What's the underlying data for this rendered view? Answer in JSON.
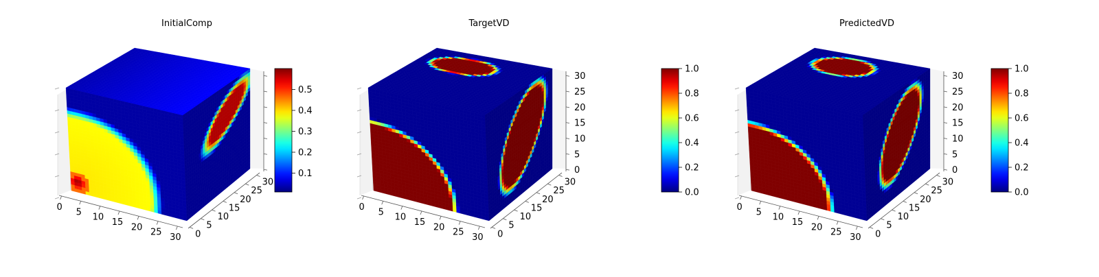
{
  "chart_data": [
    {
      "type": "3d-voxel",
      "title": "InitialComp",
      "axes": {
        "x": [
          0,
          32
        ],
        "y": [
          0,
          32
        ],
        "z": [
          0,
          32
        ]
      },
      "x_ticks": [
        "0",
        "5",
        "10",
        "15",
        "20",
        "25",
        "30"
      ],
      "y_ticks": [
        "0",
        "5",
        "10",
        "15",
        "20",
        "25",
        "30"
      ],
      "z_ticks": [],
      "colormap": "jet",
      "colorbar": {
        "min": 0.03,
        "max": 0.59,
        "ticks": [
          "0.1",
          "0.2",
          "0.3",
          "0.4",
          "0.5"
        ]
      },
      "front_face": "background ~0.05; large circular region ~0.38 centered near (x≈3, z≈3) radius ~18; peak ~0.59 at (x≈2, z≈3)",
      "side_face": "background ~0.05; elongated high band ~0.5 near upper right",
      "top_face": "uniform low ~0.05"
    },
    {
      "type": "3d-voxel",
      "title": "TargetVD",
      "axes": {
        "x": [
          0,
          32
        ],
        "y": [
          0,
          32
        ],
        "z": [
          0,
          32
        ]
      },
      "x_ticks": [
        "0",
        "5",
        "10",
        "15",
        "20",
        "25",
        "30"
      ],
      "y_ticks": [
        "0",
        "5",
        "10",
        "15",
        "20",
        "25",
        "30"
      ],
      "z_ticks": [
        "0",
        "5",
        "10",
        "15",
        "20",
        "25",
        "30"
      ],
      "colormap": "jet",
      "colorbar": {
        "min": 0.0,
        "max": 1.0,
        "ticks": [
          "0.0",
          "0.2",
          "0.4",
          "0.6",
          "0.8",
          "1.0"
        ]
      },
      "front_face": "binary: 1.0 inside large circle centered near lower-left, 0.0 elsewhere",
      "side_face": "1.0 inside tilted ellipse, 0.0 elsewhere",
      "top_face": "1.0 inside elongated ellipse near back edge, 0.0 elsewhere"
    },
    {
      "type": "3d-voxel",
      "title": "PredictedVD",
      "axes": {
        "x": [
          0,
          32
        ],
        "y": [
          0,
          32
        ],
        "z": [
          0,
          32
        ]
      },
      "x_ticks": [
        "0",
        "5",
        "10",
        "15",
        "20",
        "25",
        "30"
      ],
      "y_ticks": [
        "0",
        "5",
        "10",
        "15",
        "20",
        "25",
        "30"
      ],
      "z_ticks": [
        "0",
        "5",
        "10",
        "15",
        "20",
        "25",
        "30"
      ],
      "colormap": "jet",
      "colorbar": {
        "min": 0.0,
        "max": 1.0,
        "ticks": [
          "0.0",
          "0.2",
          "0.4",
          "0.6",
          "0.8",
          "1.0"
        ]
      },
      "front_face": "1.0 inside large circle near lower-left, 0.0 elsewhere",
      "side_face": "1.0 inside tilted ellipse, 0.0 elsewhere",
      "top_face": "1.0 inside ellipse near back edge, 0.0 elsewhere"
    }
  ]
}
